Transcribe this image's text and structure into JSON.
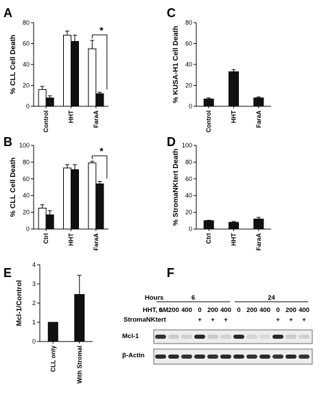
{
  "chart_data": [
    {
      "panel": "A",
      "type": "bar",
      "ylabel": "% CLL Cell Death",
      "categories": [
        "Control",
        "HHT",
        "FaraA"
      ],
      "series": [
        {
          "fill": "#ffffff",
          "values": [
            16,
            68,
            55
          ],
          "errors": [
            3,
            4,
            8
          ]
        },
        {
          "fill": "#111111",
          "values": [
            8,
            62,
            12
          ],
          "errors": [
            2,
            6,
            1.5
          ]
        }
      ],
      "ylim": [
        0,
        80
      ],
      "yticks": [
        0,
        20,
        40,
        60,
        80
      ],
      "significance": {
        "category": "FaraA",
        "label": "*"
      }
    },
    {
      "panel": "B",
      "type": "bar",
      "ylabel": "% CLL Cell Death",
      "categories": [
        "Ctrl",
        "HHT",
        "FaraA"
      ],
      "series": [
        {
          "fill": "#ffffff",
          "values": [
            25,
            73,
            79
          ],
          "errors": [
            4,
            4,
            2
          ]
        },
        {
          "fill": "#111111",
          "values": [
            17,
            71,
            54
          ],
          "errors": [
            5,
            6,
            3
          ]
        }
      ],
      "ylim": [
        0,
        100
      ],
      "yticks": [
        0,
        20,
        40,
        60,
        80,
        100
      ],
      "significance": {
        "category": "FaraA",
        "label": "*"
      }
    },
    {
      "panel": "C",
      "type": "bar",
      "ylabel": "% KUSA-H1 Cell Death",
      "categories": [
        "Control",
        "HHT",
        "FaraA"
      ],
      "series": [
        {
          "fill": "#111111",
          "values": [
            7,
            33,
            8
          ],
          "errors": [
            1,
            2,
            1
          ]
        }
      ],
      "ylim": [
        0,
        80
      ],
      "yticks": [
        0,
        20,
        40,
        60,
        80
      ]
    },
    {
      "panel": "D",
      "type": "bar",
      "ylabel": "% StromaNKtert Death",
      "categories": [
        "Ctrl",
        "HHT",
        "FaraA"
      ],
      "series": [
        {
          "fill": "#111111",
          "values": [
            10,
            8,
            12
          ],
          "errors": [
            0.5,
            1,
            2
          ]
        }
      ],
      "ylim": [
        0,
        100
      ],
      "yticks": [
        0,
        20,
        40,
        60,
        80,
        100
      ]
    },
    {
      "panel": "E",
      "type": "bar",
      "ylabel": "Mcl-1/Control",
      "categories": [
        "CLL only",
        "With Stromal"
      ],
      "series": [
        {
          "fill": "#111111",
          "values": [
            1.0,
            2.45
          ],
          "errors": [
            0,
            1.0
          ]
        }
      ],
      "ylim": [
        0,
        4
      ],
      "yticks": [
        0,
        1,
        2,
        3,
        4
      ]
    }
  ],
  "western_blot": {
    "panel": "F",
    "rows": {
      "hours": "Hours",
      "dose": "HHT, nM",
      "stroma": "StromaNKtert",
      "mcl1": "Mcl-1",
      "actin": "β-Actin"
    },
    "hours_groups": [
      "6",
      "24"
    ],
    "doses": [
      "0",
      "200",
      "400",
      "0",
      "200",
      "400",
      "0",
      "200",
      "400",
      "0",
      "200",
      "400"
    ],
    "stroma_marks": [
      "",
      "",
      "",
      "+",
      "+",
      "+",
      "",
      "",
      "",
      "+",
      "+",
      "+"
    ],
    "mcl1_intensity": [
      0.85,
      0.15,
      0.12,
      0.9,
      0.15,
      0.12,
      0.9,
      0.1,
      0.08,
      0.9,
      0.15,
      0.12
    ],
    "actin_intensity": [
      0.9,
      0.9,
      0.85,
      0.9,
      0.85,
      0.9,
      0.9,
      0.85,
      0.9,
      0.85,
      0.9,
      0.85
    ]
  }
}
